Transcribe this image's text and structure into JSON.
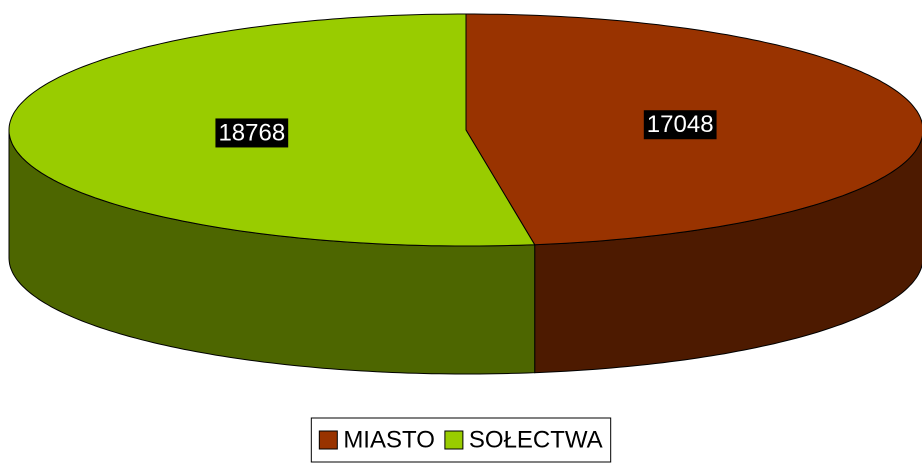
{
  "chart_data": {
    "type": "pie3d",
    "categories": [
      "MIASTO",
      "SOŁECTWA"
    ],
    "values": [
      17048,
      18768
    ],
    "colors": [
      "#993300",
      "#99cc00"
    ],
    "legend": "bottom"
  }
}
